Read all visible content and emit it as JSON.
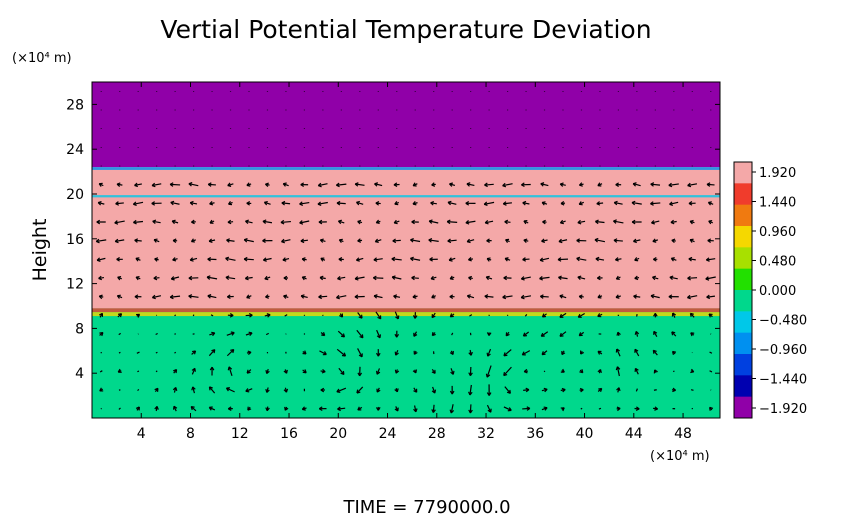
{
  "chart_data": {
    "type": "heatmap",
    "title": "Vertial Potential Temperature Deviation",
    "xlabel": "",
    "ylabel": "Height",
    "x_unit": "(×10⁴ m)",
    "y_unit": "(×10⁴ m)",
    "xlim": [
      0,
      51
    ],
    "ylim": [
      0,
      30
    ],
    "x_ticks": [
      4,
      8,
      12,
      16,
      20,
      24,
      28,
      32,
      36,
      40,
      44,
      48
    ],
    "y_ticks": [
      4,
      8,
      12,
      16,
      20,
      24,
      28
    ],
    "bands": [
      {
        "y_from": 0,
        "y_to": 9.8,
        "value": 0.0
      },
      {
        "y_from": 9.8,
        "y_to": 22.4,
        "value": 1.92
      },
      {
        "y_from": 22.4,
        "y_to": 30,
        "value": -1.92
      }
    ],
    "colorbar": {
      "labels": [
        "1.920",
        "1.440",
        "0.960",
        "0.480",
        "0.000",
        "−0.480",
        "−0.960",
        "−1.440",
        "−1.920"
      ],
      "colors": [
        "#f4a8a8",
        "#f03c2c",
        "#f07a10",
        "#f5d800",
        "#a8e000",
        "#22e000",
        "#00d88c",
        "#00c8e8",
        "#0090f0",
        "#0040e0",
        "#0000b0",
        "#9000a8"
      ]
    },
    "vector_field": "wind arrows",
    "time_label": "TIME  =  7790000.0"
  }
}
